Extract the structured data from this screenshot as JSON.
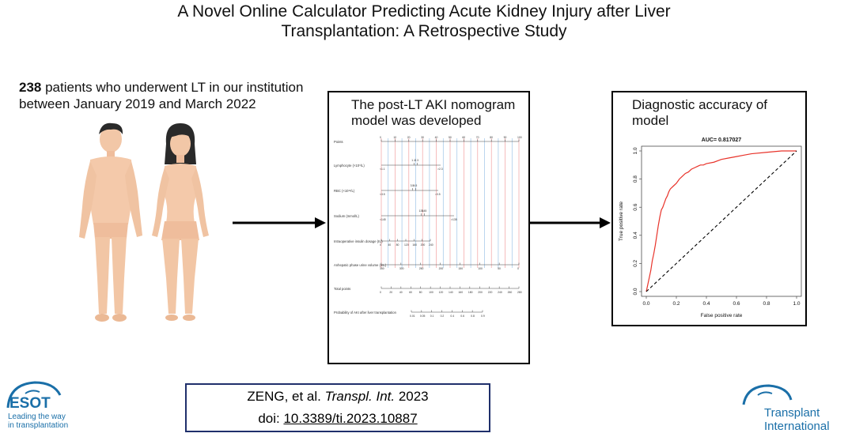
{
  "title": {
    "line1": "A Novel Online Calculator Predicting Acute Kidney Injury after Liver",
    "line2": "Transplantation: A Retrospective Study"
  },
  "intro": {
    "count": "238",
    "line1_rest": " patients who underwent LT in our institution",
    "line2": "between January 2019 and March 2022"
  },
  "nomogram_panel": {
    "title_line1": "The post-LT AKI nomogram",
    "title_line2": "model was developed",
    "rows": [
      {
        "label": "Points",
        "ticks": [
          "0",
          "10",
          "20",
          "30",
          "40",
          "50",
          "60",
          "70",
          "80",
          "90",
          "100"
        ]
      },
      {
        "label": "Lymphocyte (×10⁹/L)",
        "ticks": [
          "1.1",
          "2.3"
        ],
        "extra": [
          "<1.1",
          ">2.3"
        ]
      },
      {
        "label": "RBC (×10¹²/L)",
        "ticks": [
          "3.5",
          "4.5"
        ],
        "extra": [
          "<3.5",
          ">3.5"
        ]
      },
      {
        "label": "Sodium (mmol/L)",
        "ticks": [
          "135",
          "145"
        ],
        "extra": [
          "<145",
          ">135"
        ]
      },
      {
        "label": "Intraoperative insulin dosage (IU)",
        "ticks": [
          "0",
          "40",
          "80",
          "120",
          "160",
          "200",
          "240"
        ]
      },
      {
        "label": "Anhepatic phase urine volume (mL)",
        "ticks": [
          "350",
          "300",
          "250",
          "200",
          "150",
          "100",
          "50",
          "0"
        ]
      },
      {
        "label": "Total points",
        "ticks": [
          "0",
          "20",
          "40",
          "60",
          "80",
          "100",
          "120",
          "140",
          "160",
          "180",
          "200",
          "220",
          "240",
          "260",
          "280"
        ]
      },
      {
        "label": "Probability of AKI after liver transplantation",
        "ticks": [
          "0.01",
          "0.05",
          "0.1",
          "0.2",
          "0.4",
          "0.6",
          "0.8",
          "0.9"
        ]
      }
    ]
  },
  "roc_panel": {
    "title": "Diagnostic accuracy of model",
    "auc_label": "AUC= 0.817027",
    "xlabel": "False positive rate",
    "ylabel": "True positive rate"
  },
  "chart_data": {
    "type": "line",
    "title": "AUC= 0.817027",
    "xlabel": "False positive rate",
    "ylabel": "True positive rate",
    "xlim": [
      0,
      1
    ],
    "ylim": [
      0,
      1
    ],
    "x_ticks": [
      "0.0",
      "0.2",
      "0.4",
      "0.6",
      "0.8",
      "1.0"
    ],
    "y_ticks": [
      "0.0",
      "0.2",
      "0.4",
      "0.6",
      "0.8",
      "1.0"
    ],
    "series": [
      {
        "color": "#e8332a",
        "x": [
          0,
          0.01,
          0.02,
          0.03,
          0.04,
          0.05,
          0.06,
          0.07,
          0.08,
          0.09,
          0.1,
          0.11,
          0.12,
          0.13,
          0.14,
          0.15,
          0.16,
          0.18,
          0.2,
          0.22,
          0.24,
          0.26,
          0.28,
          0.3,
          0.32,
          0.34,
          0.36,
          0.38,
          0.4,
          0.45,
          0.5,
          0.55,
          0.6,
          0.65,
          0.7,
          0.8,
          0.9,
          1.0
        ],
        "y": [
          0,
          0.05,
          0.1,
          0.15,
          0.22,
          0.27,
          0.33,
          0.4,
          0.47,
          0.53,
          0.58,
          0.6,
          0.63,
          0.66,
          0.68,
          0.71,
          0.73,
          0.75,
          0.77,
          0.8,
          0.82,
          0.84,
          0.85,
          0.87,
          0.88,
          0.89,
          0.9,
          0.9,
          0.91,
          0.92,
          0.94,
          0.95,
          0.96,
          0.97,
          0.98,
          0.99,
          1.0,
          1.0
        ]
      },
      {
        "color": "#000000",
        "dashed": true,
        "x": [
          0,
          1
        ],
        "y": [
          0,
          1
        ]
      }
    ]
  },
  "citation": {
    "author": "ZENG, et al. ",
    "journal": "Transpl. Int.",
    "year": " 2023",
    "doi_label": "doi: ",
    "doi": "10.3389/ti.2023.10887"
  },
  "logos": {
    "esot_name": "ESOT",
    "esot_tagline1": "Leading the way",
    "esot_tagline2": "in transplantation",
    "ti_line1": "Transplant",
    "ti_line2": "International",
    "brand_color": "#1a6fa8"
  }
}
